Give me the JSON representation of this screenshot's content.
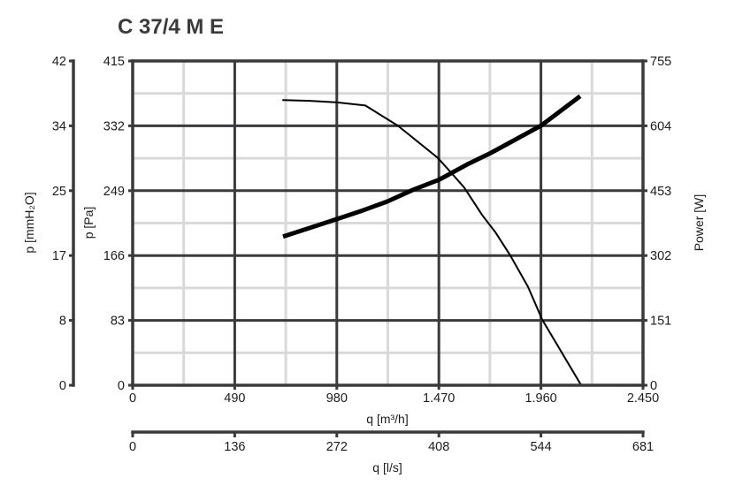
{
  "chart_data": {
    "type": "line",
    "title": "C 37/4 M E",
    "xlabel": "q [m³/h]",
    "x2label": "q [l/s]",
    "ylabel": "p [Pa]",
    "y_alt_label": "p [mmH₂O]",
    "y2label": "Power [W]",
    "xlim": [
      0,
      2450
    ],
    "ylim": [
      0,
      415
    ],
    "y2lim": [
      0,
      755
    ],
    "grid": true,
    "legend": "none",
    "x_ticks": [
      0,
      490,
      980,
      1470,
      1960,
      2450
    ],
    "x_tick_labels": [
      "0",
      "490",
      "980",
      "1.470",
      "1.960",
      "2.450"
    ],
    "x2_tick_labels": [
      "0",
      "136",
      "272",
      "408",
      "544",
      "681"
    ],
    "y_ticks": [
      0,
      83,
      166,
      249,
      332,
      415
    ],
    "y_tick_labels": [
      "0",
      "83",
      "166",
      "249",
      "332",
      "415"
    ],
    "y_alt_tick_labels": [
      "0",
      "8",
      "17",
      "25",
      "34",
      "42"
    ],
    "y2_ticks": [
      0,
      151,
      302,
      453,
      604,
      755
    ],
    "y2_tick_labels": [
      "0",
      "151",
      "302",
      "453",
      "604",
      "755"
    ],
    "series": [
      {
        "name": "p [Pa]",
        "axis": "left",
        "line_style": "thin",
        "x": [
          722,
          850,
          981,
          1117,
          1274,
          1465,
          1529,
          1592,
          1677,
          1741,
          1813,
          1898,
          1966,
          2153
        ],
        "y": [
          365,
          364,
          362,
          358,
          332,
          291,
          272,
          253,
          218,
          196,
          166,
          126,
          84,
          0
        ]
      },
      {
        "name": "Power [W]",
        "axis": "right",
        "line_style": "thick",
        "x": [
          722,
          981,
          1104,
          1223,
          1346,
          1473,
          1613,
          1720,
          1962,
          2148
        ],
        "y": [
          346,
          387,
          407,
          428,
          455,
          479,
          516,
          541,
          605,
          673
        ]
      }
    ]
  },
  "colors": {
    "axis": "#3a3a3c",
    "minor_grid": "#d9d9d9",
    "curve": "#000000",
    "title": "#3b3b3d"
  }
}
